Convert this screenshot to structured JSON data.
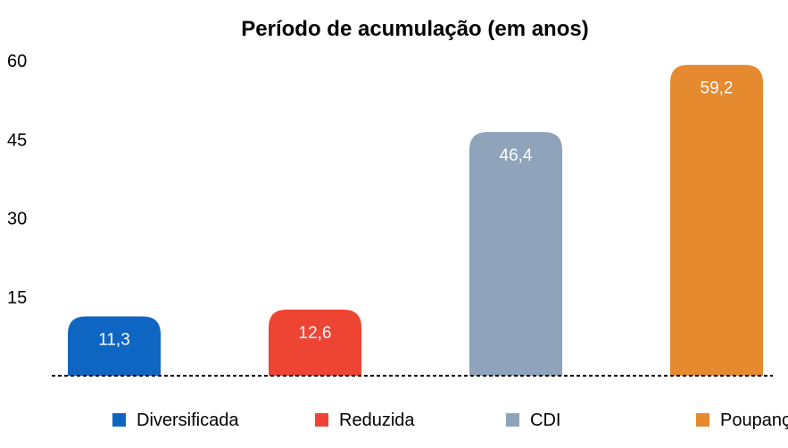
{
  "chart_data": {
    "type": "bar",
    "title": "Período de acumulação (em anos)",
    "xlabel": "",
    "ylabel": "",
    "categories": [
      "Diversificada",
      "Reduzida",
      "CDI",
      "Poupança"
    ],
    "values": [
      11.3,
      12.6,
      46.4,
      59.2
    ],
    "value_labels": [
      "11,3",
      "12,6",
      "46,4",
      "59,2"
    ],
    "colors": [
      "#0f66c2",
      "#ee4433",
      "#8fa3bb",
      "#e58a2e"
    ],
    "ylim": [
      0,
      60
    ],
    "yticks": [
      15,
      30,
      45,
      60
    ],
    "ytick_labels": [
      "15",
      "30",
      "45",
      "60"
    ],
    "grid": false,
    "baseline": "dashed",
    "legend_position": "bottom",
    "data_labels_position": "inside-top"
  }
}
